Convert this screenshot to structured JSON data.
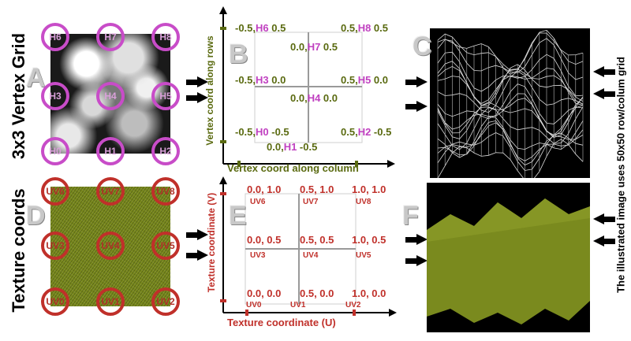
{
  "rows": {
    "top_label": "3x3 Vertex Grid",
    "bottom_label": "Texture coords"
  },
  "panels": {
    "A": "A",
    "B": "B",
    "C": "C",
    "D": "D",
    "E": "E",
    "F": "F"
  },
  "vertex_rings": [
    "H6",
    "H7",
    "H8",
    "H3",
    "H4",
    "H5",
    "H0",
    "H1",
    "H2"
  ],
  "uv_rings": [
    "UV6",
    "UV7",
    "UV8",
    "UV3",
    "UV4",
    "UV5",
    "UV0",
    "UV1",
    "UV2"
  ],
  "vertex_graph": {
    "ylabel": "Vertex coord along rows",
    "xlabel": "Vertex coord along column",
    "points": [
      {
        "pre": "-0.5,",
        "name": "H6",
        "post": " 0.5"
      },
      {
        "pre": "0.0,",
        "name": "H7",
        "post": " 0.5"
      },
      {
        "pre": "0.5,",
        "name": "H8",
        "post": " 0.5"
      },
      {
        "pre": "-0.5,",
        "name": "H3",
        "post": " 0.0"
      },
      {
        "pre": "0.0,",
        "name": "H4",
        "post": " 0.0"
      },
      {
        "pre": "0.5,",
        "name": "H5",
        "post": " 0.0"
      },
      {
        "pre": "-0.5,",
        "name": "H0",
        "post": " -0.5"
      },
      {
        "pre": "0.0,",
        "name": "H1",
        "post": " -0.5"
      },
      {
        "pre": "0.5,",
        "name": "H2",
        "post": " -0.5"
      }
    ],
    "colors": {
      "number": "#5a6a10",
      "name": "#c040c0",
      "axis_tick": "#5a6a10"
    }
  },
  "texture_graph": {
    "ylabel": "Texture coordinate (V)",
    "xlabel": "Texture coordinate (U)",
    "values": [
      "0.0, 1.0",
      "0.5, 1.0",
      "1.0, 1.0",
      "0.0, 0.5",
      "0.5, 0.5",
      "1.0, 0.5",
      "0.0, 0.0",
      "0.5, 0.0",
      "1.0, 0.0"
    ],
    "names": [
      "UV6",
      "UV7",
      "UV8",
      "UV3",
      "UV4",
      "UV5",
      "UV0",
      "UV1",
      "UV2"
    ],
    "colors": {
      "text": "#c0302a"
    }
  },
  "side_note": "The illustrated image uses 50x50 row/colum grid"
}
